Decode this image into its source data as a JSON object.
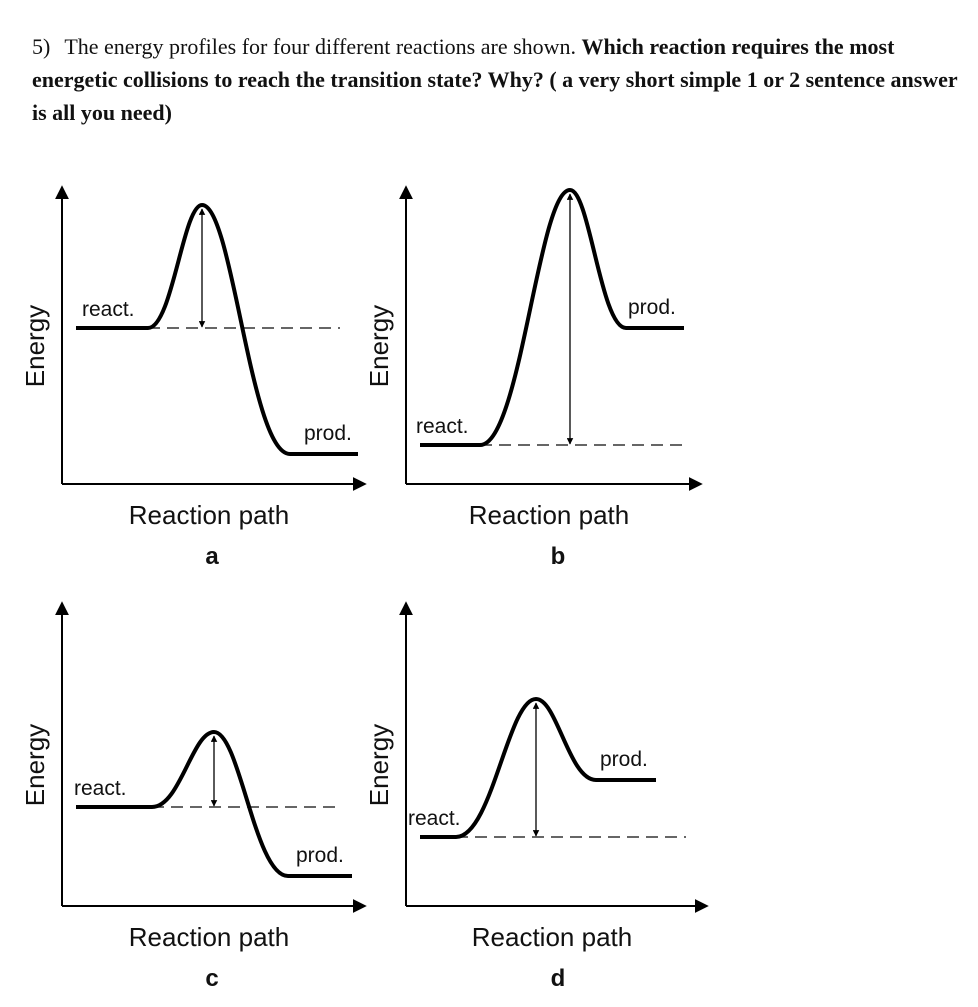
{
  "question": {
    "number": "5)",
    "intro": "The energy profiles for four different reactions are shown.",
    "bold": "Which reaction requires the most energetic collisions to reach the transition state? Why? ( a very short simple 1 or 2 sentence answer is all you need)"
  },
  "chart_data": [
    {
      "type": "energy-profile",
      "panel_label": "a",
      "xlabel": "Reaction path",
      "ylabel": "Energy",
      "reactant_label": "react.",
      "product_label": "prod.",
      "reactant_energy": 0.52,
      "peak_energy": 0.93,
      "product_energy": 0.1
    },
    {
      "type": "energy-profile",
      "panel_label": "b",
      "xlabel": "Reaction path",
      "ylabel": "Energy",
      "reactant_label": "react.",
      "product_label": "prod.",
      "reactant_energy": 0.13,
      "peak_energy": 0.98,
      "product_energy": 0.52
    },
    {
      "type": "energy-profile",
      "panel_label": "c",
      "xlabel": "Reaction path",
      "ylabel": "Energy",
      "reactant_label": "react.",
      "product_label": "prod.",
      "reactant_energy": 0.33,
      "peak_energy": 0.58,
      "product_energy": 0.1
    },
    {
      "type": "energy-profile",
      "panel_label": "d",
      "xlabel": "Reaction path",
      "ylabel": "Energy",
      "reactant_label": "react.",
      "product_label": "prod.",
      "reactant_energy": 0.23,
      "peak_energy": 0.69,
      "product_energy": 0.42
    }
  ]
}
